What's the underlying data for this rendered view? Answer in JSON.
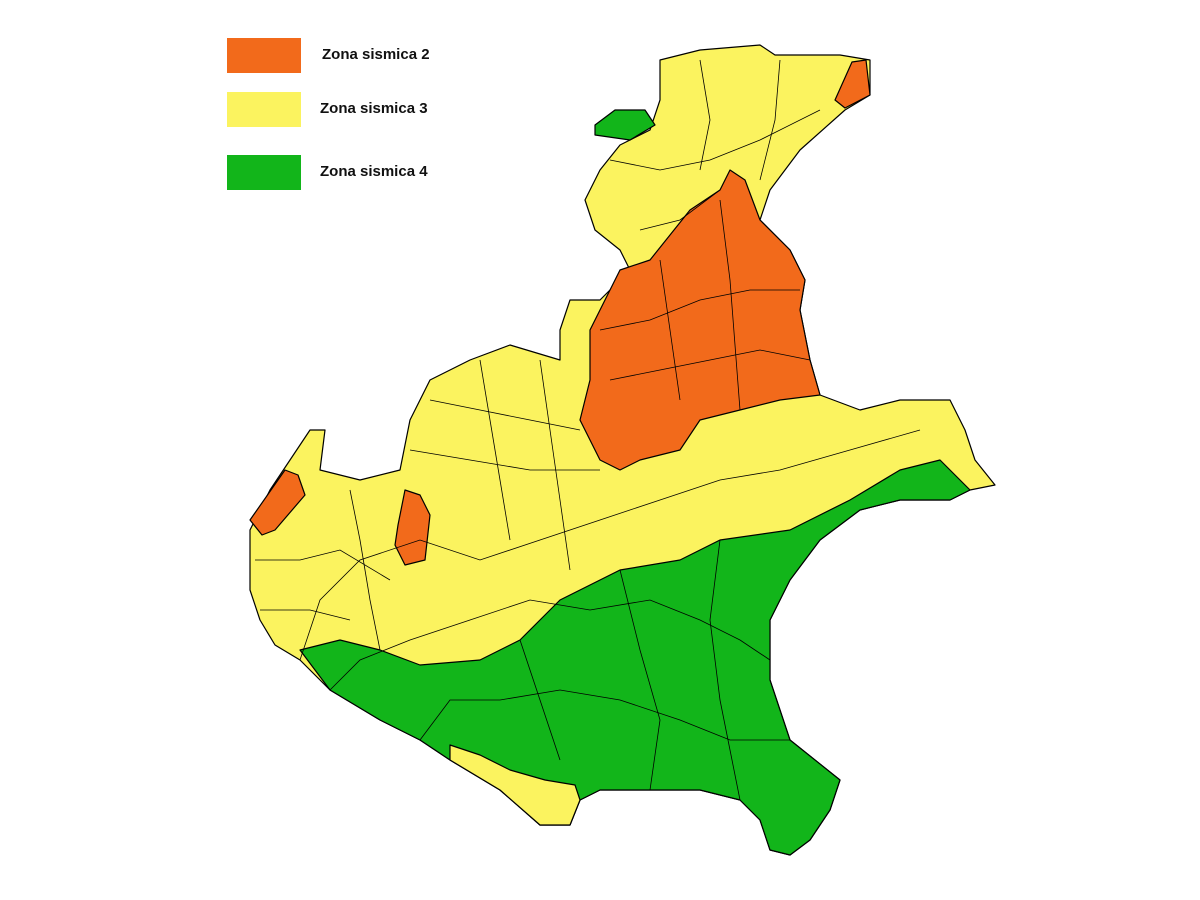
{
  "legend": [
    {
      "label": "Zona sismica 2",
      "color": "#f26a1b"
    },
    {
      "label": "Zona sismica 3",
      "color": "#fbf35f"
    },
    {
      "label": "Zona sismica 4",
      "color": "#12b51a"
    }
  ]
}
